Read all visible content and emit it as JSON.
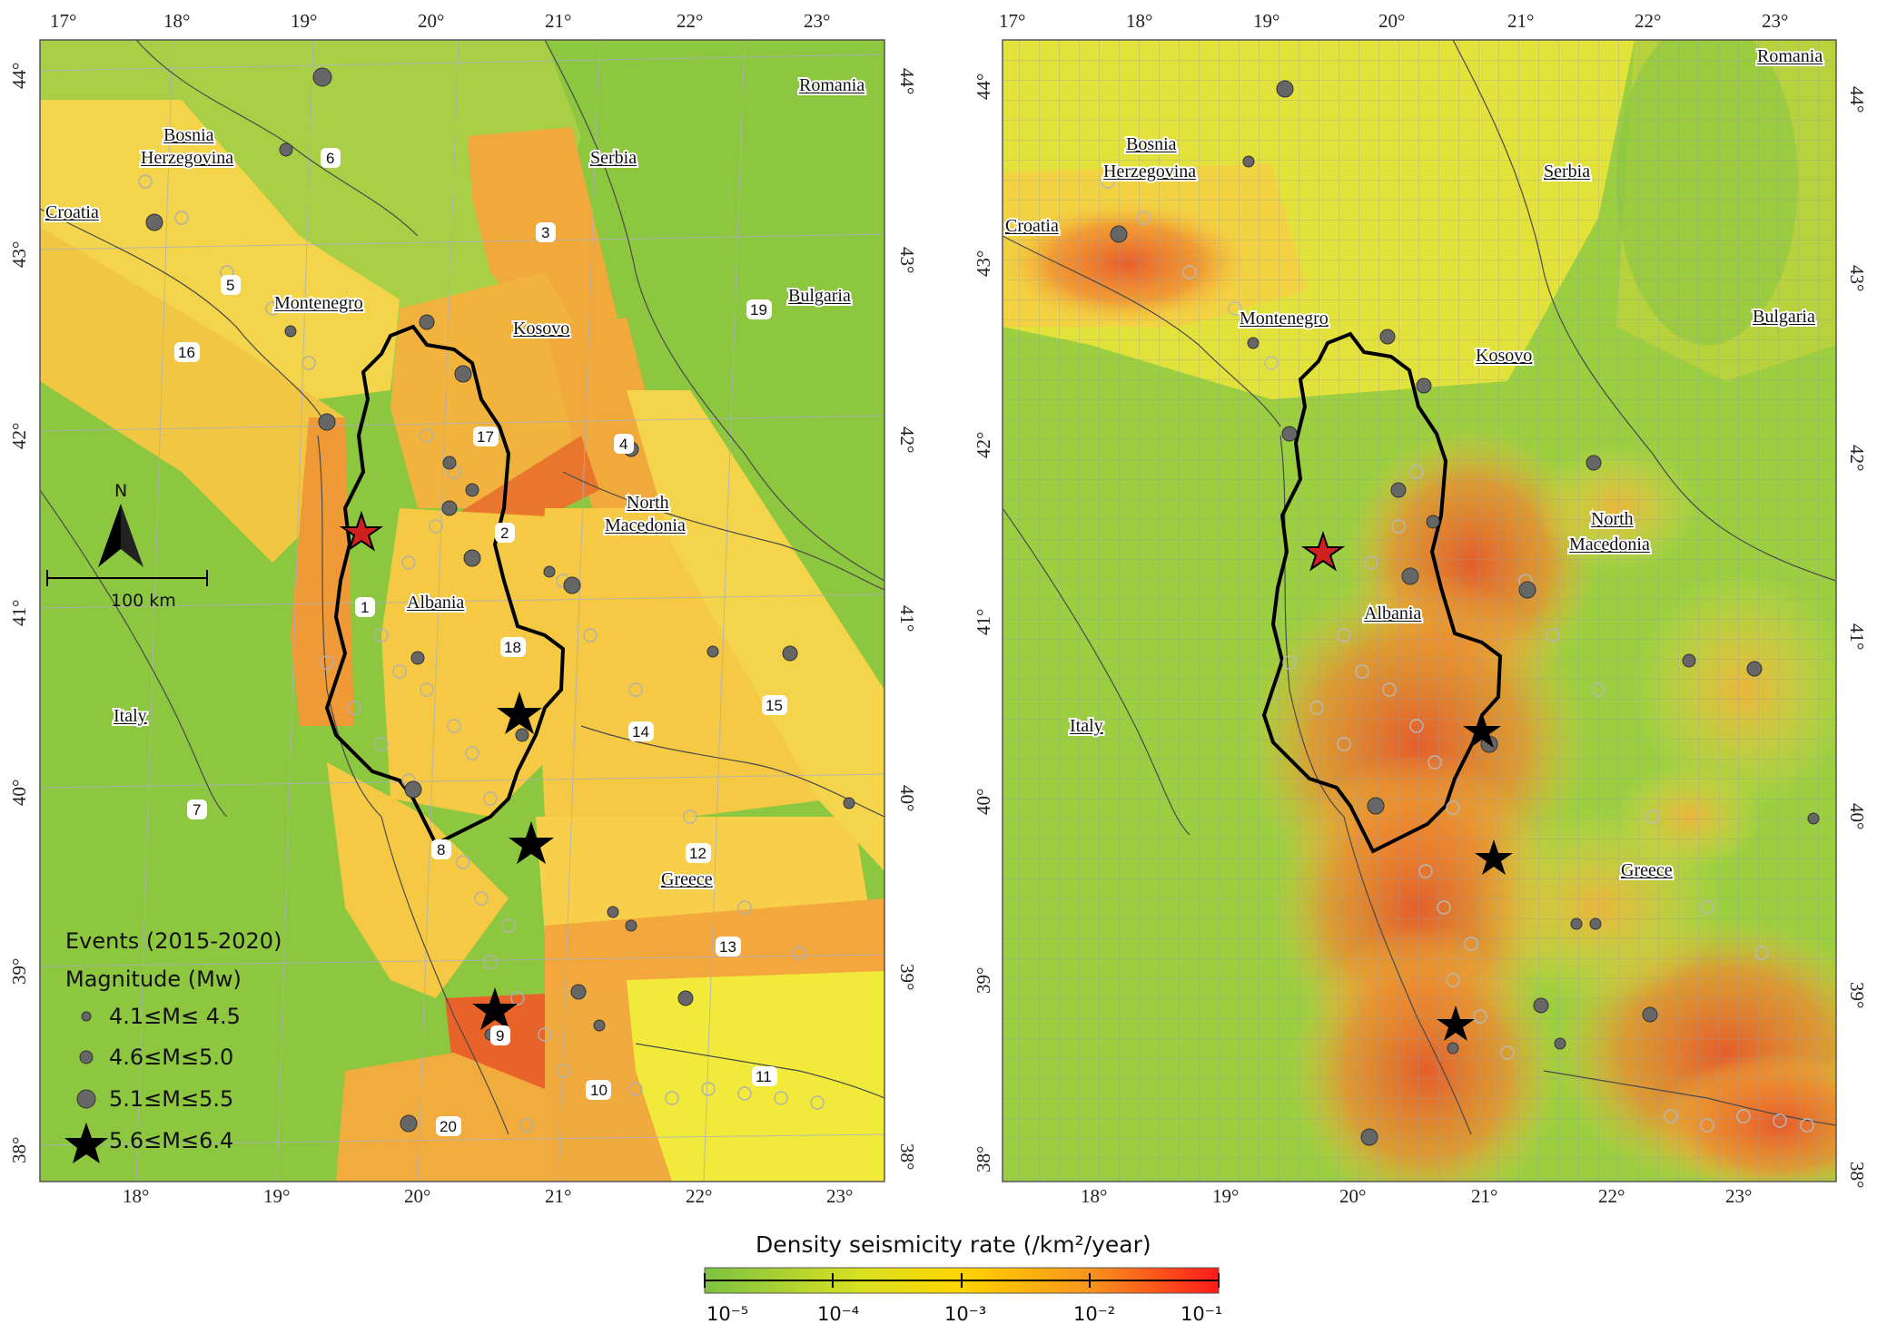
{
  "left_map": {
    "top_lon_ticks": [
      "17°",
      "18°",
      "19°",
      "20°",
      "21°",
      "22°",
      "23°"
    ],
    "bottom_lon_ticks": [
      "18°",
      "19°",
      "20°",
      "21°",
      "22°",
      "23°"
    ],
    "left_lat_ticks": [
      "44°",
      "43°",
      "42°",
      "41°",
      "40°",
      "39°",
      "38°"
    ],
    "right_lat_ticks": [
      "44°",
      "43°",
      "42°",
      "41°",
      "40°",
      "39°",
      "38°"
    ],
    "countries": {
      "bosnia_1": "Bosnia",
      "bosnia_2": "Herzegovina",
      "croatia": "Croatia",
      "montenegro": "Montenegro",
      "serbia": "Serbia",
      "romania": "Romania",
      "bulgaria": "Bulgaria",
      "kosovo": "Kosovo",
      "north_macedonia_1": "North",
      "north_macedonia_2": "Macedonia",
      "albania": "Albania",
      "italy": "Italy",
      "greece": "Greece"
    },
    "zone_numbers": [
      "1",
      "2",
      "3",
      "4",
      "5",
      "6",
      "7",
      "8",
      "9",
      "10",
      "11",
      "12",
      "13",
      "14",
      "15",
      "16",
      "17",
      "18",
      "19",
      "20"
    ],
    "north_label": "N",
    "scale_label": "100 km",
    "legend": {
      "title": "Events (2015-2020)",
      "subtitle": "Magnitude (Mw)",
      "items": [
        "4.1≤M≤ 4.5",
        "4.6≤M≤5.0",
        "5.1≤M≤5.5",
        "5.6≤M≤6.4"
      ]
    }
  },
  "right_map": {
    "top_lon_ticks": [
      "17°",
      "18°",
      "19°",
      "20°",
      "21°",
      "22°",
      "23°"
    ],
    "bottom_lon_ticks": [
      "18°",
      "19°",
      "20°",
      "21°",
      "22°",
      "23°"
    ],
    "left_lat_ticks": [
      "44°",
      "43°",
      "42°",
      "41°",
      "40°",
      "39°",
      "38°"
    ],
    "right_lat_ticks": [
      "44°",
      "43°",
      "42°",
      "41°",
      "40°",
      "39°",
      "38°"
    ],
    "countries": {
      "romania": "Romania",
      "bosnia_1": "Bosnia",
      "bosnia_2": "Herzegovina",
      "serbia": "Serbia",
      "croatia": "Croatia",
      "bulgaria": "Bulgaria",
      "montenegro": "Montenegro",
      "kosovo": "Kosovo",
      "north_macedonia_1": "North",
      "north_macedonia_2": "Macedonia",
      "albania": "Albania",
      "italy": "Italy",
      "greece": "Greece"
    }
  },
  "colorbar": {
    "title": "Density seismicity rate (/km²/year)",
    "ticks": [
      "10⁻⁵",
      "10⁻⁴",
      "10⁻³",
      "10⁻²",
      "10⁻¹"
    ],
    "colors": [
      "#8cc63f",
      "#ffe135",
      "#f39c2b",
      "#ff0000"
    ]
  },
  "colors": {
    "low_rate": "#8cc63f",
    "mid_rate": "#f5d94a",
    "high_rate": "#ef7c2f",
    "border": "#000000",
    "event_fill": "#666666"
  }
}
